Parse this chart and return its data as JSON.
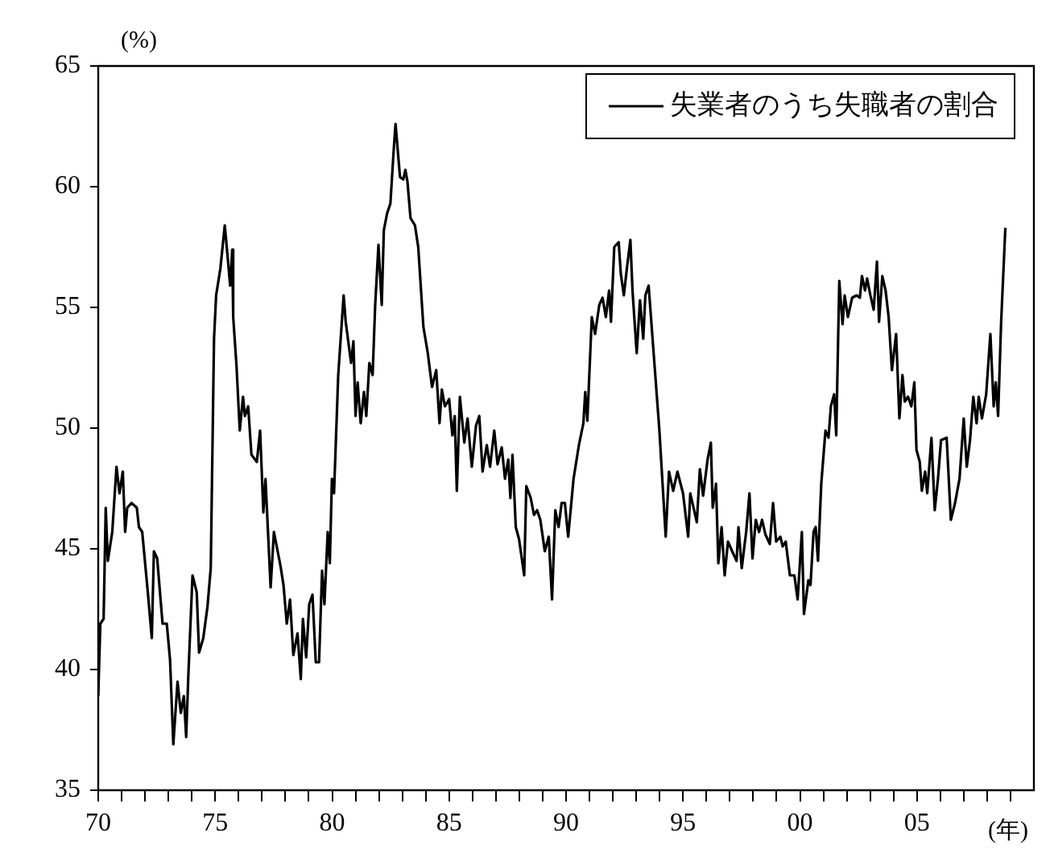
{
  "chart_data": {
    "type": "line",
    "xlabel": "(年)",
    "ylabel": "(%)",
    "xlim": [
      1970,
      2010
    ],
    "ylim": [
      35,
      65
    ],
    "yticks": [
      35,
      40,
      45,
      50,
      55,
      60,
      65
    ],
    "xticks": [
      {
        "value": 1970,
        "label": "70"
      },
      {
        "value": 1971,
        "label": null
      },
      {
        "value": 1972,
        "label": null
      },
      {
        "value": 1973,
        "label": null
      },
      {
        "value": 1974,
        "label": null
      },
      {
        "value": 1975,
        "label": "75"
      },
      {
        "value": 1976,
        "label": null
      },
      {
        "value": 1977,
        "label": null
      },
      {
        "value": 1978,
        "label": null
      },
      {
        "value": 1979,
        "label": null
      },
      {
        "value": 1980,
        "label": "80"
      },
      {
        "value": 1981,
        "label": null
      },
      {
        "value": 1982,
        "label": null
      },
      {
        "value": 1983,
        "label": null
      },
      {
        "value": 1984,
        "label": null
      },
      {
        "value": 1985,
        "label": "85"
      },
      {
        "value": 1986,
        "label": null
      },
      {
        "value": 1987,
        "label": null
      },
      {
        "value": 1988,
        "label": null
      },
      {
        "value": 1989,
        "label": null
      },
      {
        "value": 1990,
        "label": "90"
      },
      {
        "value": 1991,
        "label": null
      },
      {
        "value": 1992,
        "label": null
      },
      {
        "value": 1993,
        "label": null
      },
      {
        "value": 1994,
        "label": null
      },
      {
        "value": 1995,
        "label": "95"
      },
      {
        "value": 1996,
        "label": null
      },
      {
        "value": 1997,
        "label": null
      },
      {
        "value": 1998,
        "label": null
      },
      {
        "value": 1999,
        "label": null
      },
      {
        "value": 2000,
        "label": "00"
      },
      {
        "value": 2001,
        "label": null
      },
      {
        "value": 2002,
        "label": null
      },
      {
        "value": 2003,
        "label": null
      },
      {
        "value": 2004,
        "label": null
      },
      {
        "value": 2005,
        "label": "05"
      },
      {
        "value": 2006,
        "label": null
      },
      {
        "value": 2007,
        "label": null
      },
      {
        "value": 2008,
        "label": null
      },
      {
        "value": 2009,
        "label": null
      }
    ],
    "grid": false,
    "legend": "top right",
    "marker": "none",
    "line_style": "solid",
    "series": [
      {
        "name": "失業者のうち失職者の割合",
        "color": "#000000",
        "x": [
          1970.0,
          1970.09,
          1970.23,
          1970.32,
          1970.41,
          1970.6,
          1970.78,
          1970.91,
          1971.05,
          1971.15,
          1971.24,
          1971.42,
          1971.65,
          1971.74,
          1971.88,
          1972.11,
          1972.29,
          1972.38,
          1972.52,
          1972.75,
          1972.93,
          1973.07,
          1973.21,
          1973.39,
          1973.53,
          1973.66,
          1973.76,
          1973.85,
          1974.03,
          1974.21,
          1974.31,
          1974.49,
          1974.67,
          1974.81,
          1974.95,
          1975.04,
          1975.22,
          1975.41,
          1975.55,
          1975.64,
          1975.73,
          1975.77,
          1975.91,
          1976.05,
          1976.19,
          1976.27,
          1976.41,
          1976.55,
          1976.78,
          1976.92,
          1977.06,
          1977.15,
          1977.37,
          1977.51,
          1977.79,
          1977.92,
          1978.06,
          1978.2,
          1978.34,
          1978.52,
          1978.66,
          1978.75,
          1978.89,
          1979.02,
          1979.16,
          1979.3,
          1979.44,
          1979.57,
          1979.67,
          1979.81,
          1979.9,
          1979.99,
          1980.08,
          1980.26,
          1980.49,
          1980.58,
          1980.81,
          1980.91,
          1981.0,
          1981.09,
          1981.22,
          1981.36,
          1981.46,
          1981.59,
          1981.73,
          1981.84,
          1981.98,
          1982.12,
          1982.21,
          1982.35,
          1982.49,
          1982.63,
          1982.71,
          1982.9,
          1983.04,
          1983.13,
          1983.22,
          1983.35,
          1983.54,
          1983.68,
          1983.9,
          1984.09,
          1984.27,
          1984.45,
          1984.59,
          1984.69,
          1984.82,
          1985.0,
          1985.14,
          1985.24,
          1985.33,
          1985.46,
          1985.65,
          1985.79,
          1985.97,
          1986.15,
          1986.29,
          1986.43,
          1986.61,
          1986.75,
          1986.93,
          1987.07,
          1987.25,
          1987.39,
          1987.53,
          1987.62,
          1987.71,
          1987.85,
          1987.99,
          1988.21,
          1988.3,
          1988.49,
          1988.63,
          1988.76,
          1988.9,
          1989.09,
          1989.26,
          1989.4,
          1989.54,
          1989.68,
          1989.81,
          1989.95,
          1990.09,
          1990.32,
          1990.55,
          1990.74,
          1990.82,
          1990.91,
          1991.1,
          1991.24,
          1991.42,
          1991.56,
          1991.7,
          1991.84,
          1991.92,
          1992.06,
          1992.25,
          1992.34,
          1992.47,
          1992.61,
          1992.75,
          1992.84,
          1993.02,
          1993.16,
          1993.3,
          1993.39,
          1993.53,
          1993.76,
          1993.99,
          1994.26,
          1994.4,
          1994.58,
          1994.76,
          1995.0,
          1995.22,
          1995.31,
          1995.59,
          1995.72,
          1995.86,
          1996.05,
          1996.19,
          1996.27,
          1996.41,
          1996.51,
          1996.65,
          1996.78,
          1996.92,
          1997.1,
          1997.29,
          1997.37,
          1997.51,
          1997.7,
          1997.84,
          1997.97,
          1998.11,
          1998.25,
          1998.38,
          1998.52,
          1998.71,
          1998.85,
          1998.98,
          1999.16,
          1999.26,
          1999.39,
          1999.57,
          1999.76,
          1999.9,
          2000.08,
          2000.17,
          2000.36,
          2000.45,
          2000.58,
          2000.67,
          2000.77,
          2000.91,
          2001.09,
          2001.22,
          2001.32,
          2001.46,
          2001.55,
          2001.68,
          2001.82,
          2001.91,
          2002.05,
          2002.23,
          2002.42,
          2002.56,
          2002.65,
          2002.78,
          2002.87,
          2003.01,
          2003.15,
          2003.29,
          2003.38,
          2003.52,
          2003.66,
          2003.79,
          2003.93,
          2004.11,
          2004.25,
          2004.38,
          2004.48,
          2004.62,
          2004.76,
          2004.89,
          2004.98,
          2005.12,
          2005.21,
          2005.35,
          2005.44,
          2005.62,
          2005.76,
          2005.9,
          2006.03,
          2006.27,
          2006.45,
          2006.63,
          2006.82,
          2007.0,
          2007.13,
          2007.27,
          2007.41,
          2007.55,
          2007.64,
          2007.78,
          2007.96,
          2008.14,
          2008.28,
          2008.37,
          2008.47,
          2008.6,
          2008.78
        ],
        "values": [
          38.9,
          41.9,
          42.1,
          46.7,
          44.5,
          45.7,
          48.4,
          47.3,
          48.2,
          45.7,
          46.7,
          46.9,
          46.7,
          45.9,
          45.7,
          43.3,
          41.3,
          44.9,
          44.6,
          41.9,
          41.9,
          40.4,
          36.9,
          39.5,
          38.2,
          38.9,
          37.2,
          39.7,
          43.9,
          43.2,
          40.7,
          41.3,
          42.6,
          44.2,
          53.7,
          55.5,
          56.6,
          58.4,
          56.9,
          55.9,
          57.4,
          54.6,
          52.6,
          49.9,
          51.3,
          50.5,
          50.9,
          48.9,
          48.6,
          49.9,
          46.5,
          47.9,
          43.4,
          45.7,
          44.3,
          43.5,
          41.9,
          42.9,
          40.6,
          41.5,
          39.6,
          42.1,
          40.5,
          42.7,
          43.1,
          40.3,
          40.3,
          44.1,
          42.7,
          45.7,
          44.4,
          47.9,
          47.3,
          52.2,
          55.5,
          54.4,
          52.7,
          53.6,
          50.5,
          51.9,
          50.2,
          51.5,
          50.5,
          52.7,
          52.2,
          55.1,
          57.6,
          55.1,
          58.2,
          58.9,
          59.3,
          61.5,
          62.6,
          60.4,
          60.3,
          60.7,
          60.2,
          58.7,
          58.4,
          57.5,
          54.2,
          53.1,
          51.7,
          52.4,
          50.2,
          51.6,
          50.9,
          51.2,
          49.7,
          50.5,
          47.4,
          51.3,
          49.4,
          50.4,
          48.4,
          50.1,
          50.5,
          48.2,
          49.3,
          48.4,
          49.9,
          48.5,
          49.2,
          47.9,
          48.7,
          47.1,
          48.9,
          45.9,
          45.4,
          43.9,
          47.6,
          47.1,
          46.4,
          46.6,
          46.2,
          44.9,
          45.5,
          42.9,
          46.6,
          45.9,
          46.9,
          46.9,
          45.5,
          47.9,
          49.3,
          50.2,
          51.5,
          50.3,
          54.6,
          53.9,
          55.1,
          55.4,
          54.6,
          55.7,
          54.4,
          57.5,
          57.7,
          56.4,
          55.5,
          56.7,
          57.8,
          55.7,
          53.1,
          55.3,
          53.7,
          55.5,
          55.9,
          52.9,
          49.9,
          45.5,
          48.2,
          47.4,
          48.2,
          47.3,
          45.5,
          47.3,
          46.1,
          48.3,
          47.2,
          48.7,
          49.4,
          46.7,
          47.7,
          44.4,
          45.9,
          43.9,
          45.3,
          44.9,
          44.5,
          45.9,
          44.2,
          45.7,
          47.3,
          44.6,
          46.2,
          45.7,
          46.2,
          45.6,
          45.2,
          46.9,
          45.3,
          45.5,
          45.1,
          45.3,
          43.9,
          43.9,
          42.9,
          45.7,
          42.3,
          43.7,
          43.5,
          45.7,
          45.9,
          44.5,
          47.7,
          49.9,
          49.6,
          50.9,
          51.4,
          49.7,
          56.1,
          54.3,
          55.5,
          54.6,
          55.4,
          55.5,
          55.4,
          56.3,
          55.7,
          56.2,
          55.5,
          54.9,
          56.9,
          54.4,
          56.3,
          55.7,
          54.6,
          52.4,
          53.9,
          50.4,
          52.2,
          51.1,
          51.3,
          50.9,
          51.9,
          49.1,
          48.6,
          47.4,
          48.2,
          47.3,
          49.6,
          46.6,
          47.9,
          49.5,
          49.6,
          46.2,
          46.9,
          47.9,
          50.4,
          48.4,
          49.5,
          51.3,
          50.2,
          51.3,
          50.4,
          51.4,
          53.9,
          50.9,
          51.9,
          50.5,
          54.4,
          58.3
        ]
      }
    ]
  }
}
